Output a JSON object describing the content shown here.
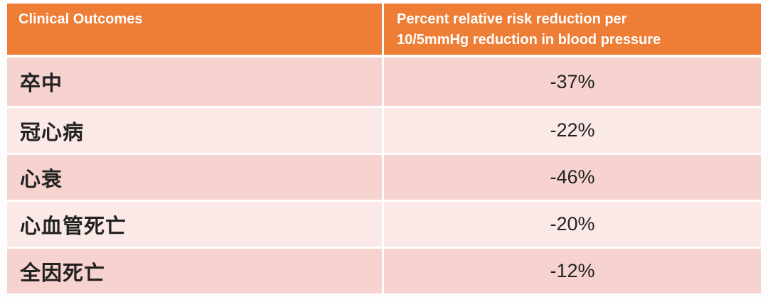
{
  "table": {
    "header": {
      "col1": "Clinical Outcomes",
      "col2_line1": "Percent relative risk reduction per",
      "col2_line2": "10/5mmHg reduction in blood pressure"
    },
    "rows": [
      {
        "outcome": "卒中",
        "value": "-37%"
      },
      {
        "outcome": "冠心病",
        "value": "-22%"
      },
      {
        "outcome": "心衰",
        "value": "-46%"
      },
      {
        "outcome": "心血管死亡",
        "value": "-20%"
      },
      {
        "outcome": "全因死亡",
        "value": "-12%"
      }
    ],
    "colors": {
      "header_bg": "#ee7d36",
      "row_dark": "#f7d3cf",
      "row_light": "#fbe9e7"
    }
  }
}
